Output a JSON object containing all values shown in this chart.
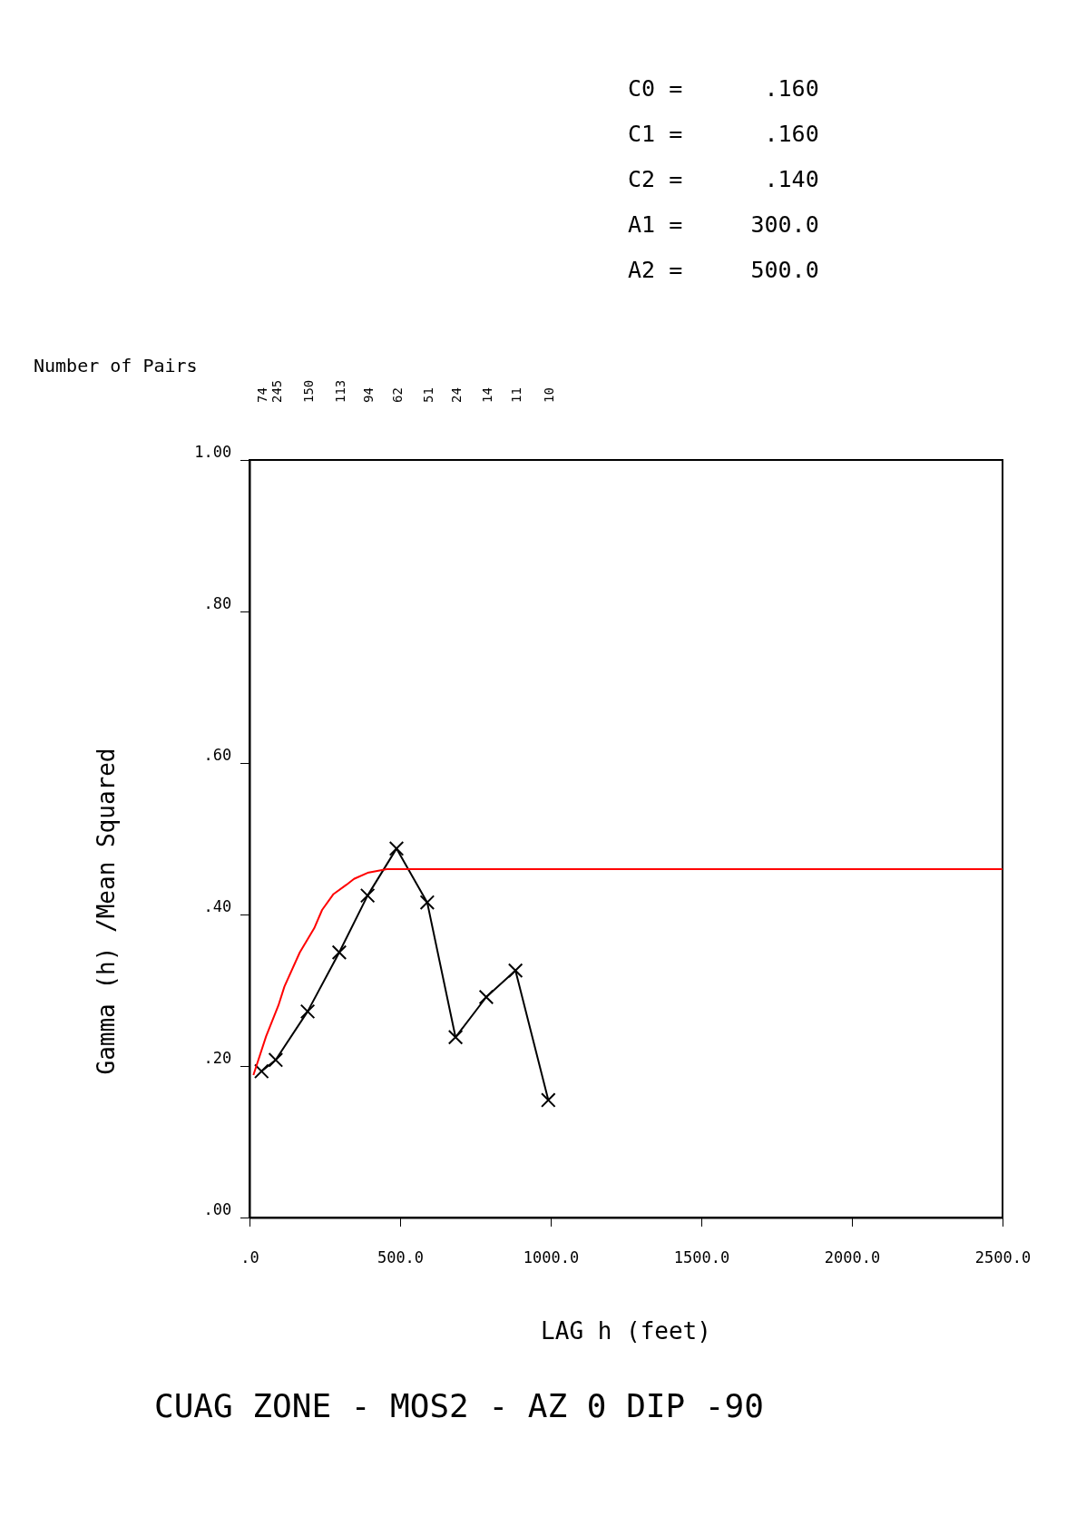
{
  "chart_data": {
    "type": "line",
    "title": "CUAG ZONE - MOS2 - AZ 0 DIP -90",
    "xlabel": "LAG h  (feet)",
    "ylabel": "Gamma (h) /Mean Squared",
    "xlim": [
      0,
      2500
    ],
    "xticks": [
      {
        "value": 0,
        "label": ".0"
      },
      {
        "value": 500,
        "label": "500.0"
      },
      {
        "value": 1000,
        "label": "1000.0"
      },
      {
        "value": 1500,
        "label": "1500.0"
      },
      {
        "value": 2000,
        "label": "2000.0"
      },
      {
        "value": 2500,
        "label": "2500.0"
      }
    ],
    "ylim": [
      0,
      1
    ],
    "yticks": [
      {
        "value": 0,
        "label": ".00"
      },
      {
        "value": 0.2,
        "label": ".20"
      },
      {
        "value": 0.4,
        "label": ".40"
      },
      {
        "value": 0.6,
        "label": ".60"
      },
      {
        "value": 0.8,
        "label": ".80"
      },
      {
        "value": 1,
        "label": "1.00"
      }
    ],
    "grid": false,
    "series": [
      {
        "color": "#000000",
        "marker": "cross",
        "line_style": "solid",
        "x": [
          40,
          87,
          193,
          298,
          392,
          488,
          590,
          684,
          786,
          883,
          992
        ],
        "values": [
          0.193,
          0.208,
          0.272,
          0.35,
          0.425,
          0.487,
          0.416,
          0.238,
          0.291,
          0.326,
          0.155
        ]
      },
      {
        "color": "#ff0000",
        "marker": "none",
        "line_style": "solid",
        "x": [
          13,
          55,
          96,
          116,
          167,
          215,
          241,
          279,
          321,
          347,
          392,
          456,
          2500
        ],
        "values": [
          0.188,
          0.239,
          0.28,
          0.305,
          0.35,
          0.382,
          0.406,
          0.427,
          0.439,
          0.447,
          0.455,
          0.46,
          0.46
        ]
      }
    ],
    "annotations": [
      "C0 =      .160",
      "C1 =      .160",
      "C2 =      .140",
      "A1 =     300.0",
      "A2 =     500.0",
      "Number of Pairs",
      "74",
      "245",
      "150",
      "113",
      "94",
      "62",
      "51",
      "24",
      "14",
      "11",
      "10"
    ]
  }
}
